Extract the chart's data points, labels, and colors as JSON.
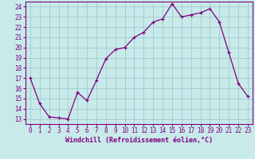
{
  "x": [
    0,
    1,
    2,
    3,
    4,
    5,
    6,
    7,
    8,
    9,
    10,
    11,
    12,
    13,
    14,
    15,
    16,
    17,
    18,
    19,
    20,
    21,
    22,
    23
  ],
  "y": [
    17.0,
    14.5,
    13.2,
    13.1,
    13.0,
    15.6,
    14.8,
    16.8,
    18.9,
    19.8,
    20.0,
    21.0,
    21.5,
    22.5,
    22.8,
    24.3,
    23.0,
    23.2,
    23.4,
    23.8,
    22.5,
    19.5,
    16.5,
    15.2
  ],
  "xlabel": "Windchill (Refroidissement éolien,°C)",
  "xticks": [
    0,
    1,
    2,
    3,
    4,
    5,
    6,
    7,
    8,
    9,
    10,
    11,
    12,
    13,
    14,
    15,
    16,
    17,
    18,
    19,
    20,
    21,
    22,
    23
  ],
  "yticks": [
    13,
    14,
    15,
    16,
    17,
    18,
    19,
    20,
    21,
    22,
    23,
    24
  ],
  "ylim": [
    12.5,
    24.5
  ],
  "xlim": [
    -0.5,
    23.5
  ],
  "line_color": "#800080",
  "marker": "+",
  "bg_color": "#c8eaea",
  "grid_color": "#a0cccc",
  "xlabel_fontsize": 6.0,
  "tick_fontsize": 5.5
}
